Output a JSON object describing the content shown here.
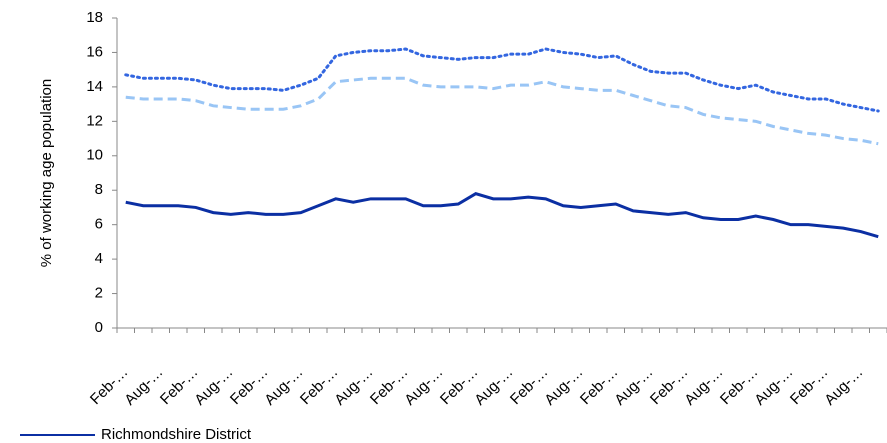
{
  "chart_data": {
    "type": "line",
    "ylabel": "% of working age population",
    "categories": [
      "Feb-…",
      null,
      "Aug-…",
      null,
      "Feb-…",
      null,
      "Aug-…",
      null,
      "Feb-…",
      null,
      "Aug-…",
      null,
      "Feb-…",
      null,
      "Aug-…",
      null,
      "Feb-…",
      null,
      "Aug-…",
      null,
      "Feb-…",
      null,
      "Aug-…",
      null,
      "Feb-…",
      null,
      "Aug-…",
      null,
      "Feb-…",
      null,
      "Aug-…",
      null,
      "Feb-…",
      null,
      "Aug-…",
      null,
      "Feb-…",
      null,
      "Aug-…",
      null,
      "Feb-…",
      null,
      "Aug-…",
      null
    ],
    "series": [
      {
        "name": "Richmondshire District",
        "color": "#0b2fa3",
        "style": "solid",
        "values": [
          7.3,
          7.1,
          7.1,
          7.1,
          7.0,
          6.7,
          6.6,
          6.7,
          6.6,
          6.6,
          6.7,
          7.1,
          7.5,
          7.3,
          7.5,
          7.5,
          7.5,
          7.1,
          7.1,
          7.2,
          7.8,
          7.5,
          7.5,
          7.6,
          7.5,
          7.1,
          7.0,
          7.1,
          7.2,
          6.8,
          6.7,
          6.6,
          6.7,
          6.4,
          6.3,
          6.3,
          6.5,
          6.3,
          6.0,
          6.0,
          5.9,
          5.8,
          5.6,
          5.3
        ]
      },
      {
        "color": "#99c5f5",
        "style": "dashed",
        "values": [
          13.4,
          13.3,
          13.3,
          13.3,
          13.2,
          12.9,
          12.8,
          12.7,
          12.7,
          12.7,
          12.9,
          13.3,
          14.3,
          14.4,
          14.5,
          14.5,
          14.5,
          14.1,
          14.0,
          14.0,
          14.0,
          13.9,
          14.1,
          14.1,
          14.3,
          14.0,
          13.9,
          13.8,
          13.8,
          13.5,
          13.2,
          12.9,
          12.8,
          12.4,
          12.2,
          12.1,
          12.0,
          11.7,
          11.5,
          11.3,
          11.2,
          11.0,
          10.9,
          10.7
        ]
      },
      {
        "color": "#3366e0",
        "style": "dotted",
        "values": [
          14.7,
          14.5,
          14.5,
          14.5,
          14.4,
          14.1,
          13.9,
          13.9,
          13.9,
          13.8,
          14.1,
          14.5,
          15.8,
          16.0,
          16.1,
          16.1,
          16.2,
          15.8,
          15.7,
          15.6,
          15.7,
          15.7,
          15.9,
          15.9,
          16.2,
          16.0,
          15.9,
          15.7,
          15.8,
          15.3,
          14.9,
          14.8,
          14.8,
          14.4,
          14.1,
          13.9,
          14.1,
          13.7,
          13.5,
          13.3,
          13.3,
          13.0,
          12.8,
          12.6
        ]
      }
    ],
    "ylim": [
      0,
      18
    ],
    "yticks": [
      0,
      2,
      4,
      6,
      8,
      10,
      12,
      14,
      16,
      18
    ],
    "legend": "bottom-left"
  }
}
